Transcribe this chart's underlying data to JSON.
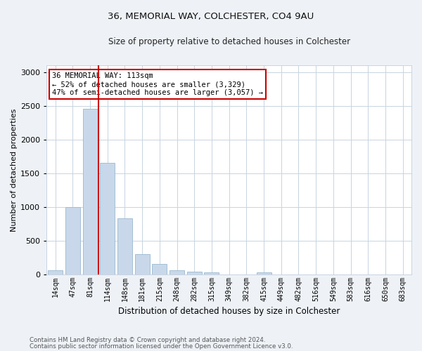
{
  "title1": "36, MEMORIAL WAY, COLCHESTER, CO4 9AU",
  "title2": "Size of property relative to detached houses in Colchester",
  "xlabel": "Distribution of detached houses by size in Colchester",
  "ylabel": "Number of detached properties",
  "categories": [
    "14sqm",
    "47sqm",
    "81sqm",
    "114sqm",
    "148sqm",
    "181sqm",
    "215sqm",
    "248sqm",
    "282sqm",
    "315sqm",
    "349sqm",
    "382sqm",
    "415sqm",
    "449sqm",
    "482sqm",
    "516sqm",
    "549sqm",
    "583sqm",
    "616sqm",
    "650sqm",
    "683sqm"
  ],
  "values": [
    55,
    1000,
    2450,
    1650,
    830,
    300,
    150,
    55,
    40,
    25,
    0,
    0,
    30,
    0,
    0,
    0,
    0,
    0,
    0,
    0,
    0
  ],
  "bar_color": "#c8d8ea",
  "bar_edge_color": "#9ab8d0",
  "vline_pos": 2.5,
  "vline_color": "#cc0000",
  "annotation_title": "36 MEMORIAL WAY: 113sqm",
  "annotation_line1": "← 52% of detached houses are smaller (3,329)",
  "annotation_line2": "47% of semi-detached houses are larger (3,057) →",
  "annotation_box_color": "#ffffff",
  "annotation_box_edge": "#cc0000",
  "ylim": [
    0,
    3100
  ],
  "yticks": [
    0,
    500,
    1000,
    1500,
    2000,
    2500,
    3000
  ],
  "footer1": "Contains HM Land Registry data © Crown copyright and database right 2024.",
  "footer2": "Contains public sector information licensed under the Open Government Licence v3.0.",
  "bg_color": "#eef2f7",
  "plot_bg_color": "#ffffff",
  "grid_color": "#c8d4e0"
}
